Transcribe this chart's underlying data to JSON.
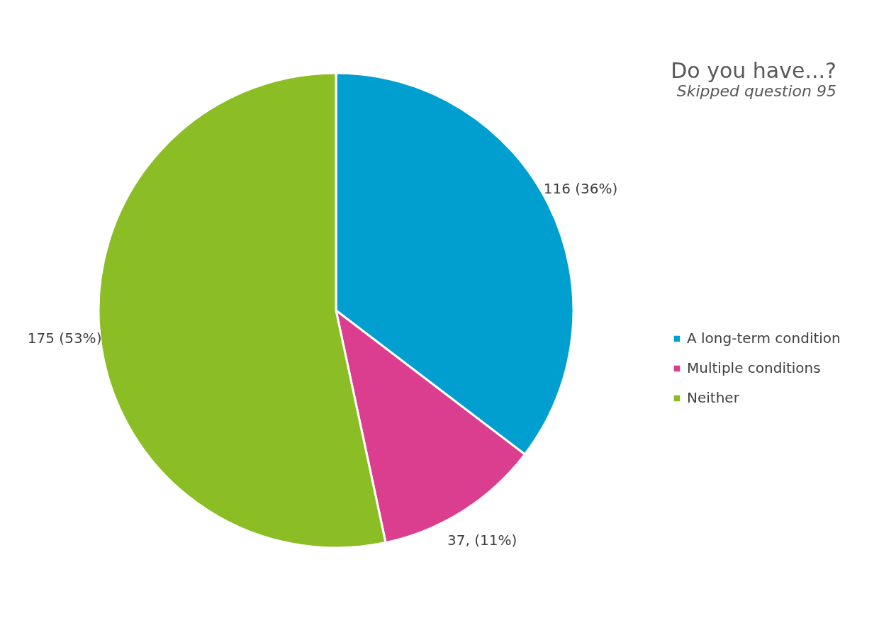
{
  "chart_data": {
    "type": "pie",
    "title": "Do you have...?",
    "subtitle": "Skipped question 95",
    "categories": [
      "A long-term condition",
      "Multiple conditions",
      "Neither"
    ],
    "values": [
      116,
      37,
      175
    ],
    "colors": [
      "#009fd0",
      "#db3d8f",
      "#8bbd24"
    ],
    "value_labels": [
      "116 (36%)",
      "37, (11%)",
      "175 (53%)"
    ],
    "legend": "right"
  }
}
